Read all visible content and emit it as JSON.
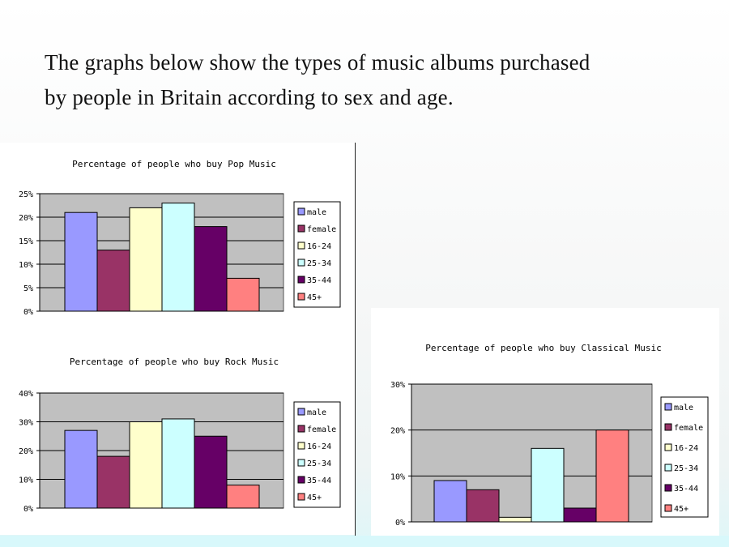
{
  "heading": {
    "line1": "The graphs below show the types of music albums purchased",
    "line2": "by people in Britain according to sex and age."
  },
  "legend_labels": [
    "male",
    "female",
    "16-24",
    "25-34",
    "35-44",
    "45+"
  ],
  "series_colors": [
    "#9999ff",
    "#993366",
    "#ffffcc",
    "#ccffff",
    "#660066",
    "#ff8080"
  ],
  "colors": {
    "plot_bg": "#c0c0c0",
    "grid": "#000000"
  },
  "chart_data": [
    {
      "type": "bar",
      "title": "Percentage of people who buy Pop Music",
      "categories": [
        "male",
        "female",
        "16-24",
        "25-34",
        "35-44",
        "45+"
      ],
      "values": [
        21,
        13,
        22,
        23,
        18,
        7
      ],
      "ylim": [
        0,
        25
      ],
      "yticks": [
        0,
        5,
        10,
        15,
        20,
        25
      ],
      "ytick_labels": [
        "0%",
        "5%",
        "10%",
        "15%",
        "20%",
        "25%"
      ],
      "grid": true,
      "legend": "right"
    },
    {
      "type": "bar",
      "title": "Percentage of people who buy Rock Music",
      "categories": [
        "male",
        "female",
        "16-24",
        "25-34",
        "35-44",
        "45+"
      ],
      "values": [
        27,
        18,
        30,
        31,
        25,
        8
      ],
      "ylim": [
        0,
        40
      ],
      "yticks": [
        0,
        10,
        20,
        30,
        40
      ],
      "ytick_labels": [
        "0%",
        "10%",
        "20%",
        "30%",
        "40%"
      ],
      "grid": true,
      "legend": "right"
    },
    {
      "type": "bar",
      "title": "Percentage of people who buy Classical Music",
      "categories": [
        "male",
        "female",
        "16-24",
        "25-34",
        "35-44",
        "45+"
      ],
      "values": [
        9,
        7,
        1,
        16,
        3,
        20
      ],
      "ylim": [
        0,
        30
      ],
      "yticks": [
        0,
        10,
        20,
        30
      ],
      "ytick_labels": [
        "0%",
        "10%",
        "20%",
        "30%"
      ],
      "grid": true,
      "legend": "right"
    }
  ]
}
